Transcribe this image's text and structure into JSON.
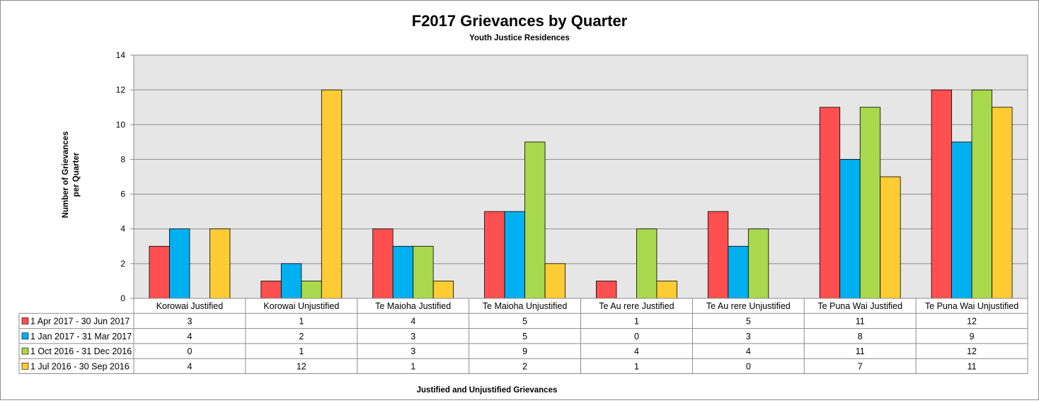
{
  "chart_data": {
    "type": "bar",
    "title": "F2017 Grievances by Quarter",
    "subtitle": "Youth Justice Residences",
    "ylabel_lines": [
      "Number of Grievances",
      "per Quarter"
    ],
    "xlabel": "Justified and Unjustified Grievances",
    "ylim": [
      0,
      14
    ],
    "yticks": [
      0,
      2,
      4,
      6,
      8,
      10,
      12,
      14
    ],
    "grid": true,
    "legend_placement": "data-table",
    "categories": [
      "Korowai Justified",
      "Korowai Unjustified",
      "Te Maioha Justified",
      "Te Maioha  Unjustified",
      "Te Au rere Justified",
      "Te Au rere Unjustified",
      "Te Puna Wai Justified",
      "Te Puna Wai Unjustified"
    ],
    "series": [
      {
        "name": "1 Apr 2017 - 30 Jun  2017",
        "color": "#ff4f4f",
        "values": [
          3,
          1,
          4,
          5,
          1,
          5,
          11,
          12
        ]
      },
      {
        "name": "1 Jan 2017 - 31 Mar 2017",
        "color": "#00b0f0",
        "values": [
          4,
          2,
          3,
          5,
          0,
          3,
          8,
          9
        ]
      },
      {
        "name": "1 Oct 2016 - 31 Dec 2016",
        "color": "#a8d84c",
        "values": [
          0,
          1,
          3,
          9,
          4,
          4,
          11,
          12
        ]
      },
      {
        "name": "1 Jul 2016 - 30 Sep 2016",
        "color": "#ffcc33",
        "values": [
          4,
          12,
          1,
          2,
          1,
          0,
          7,
          11
        ]
      }
    ]
  }
}
